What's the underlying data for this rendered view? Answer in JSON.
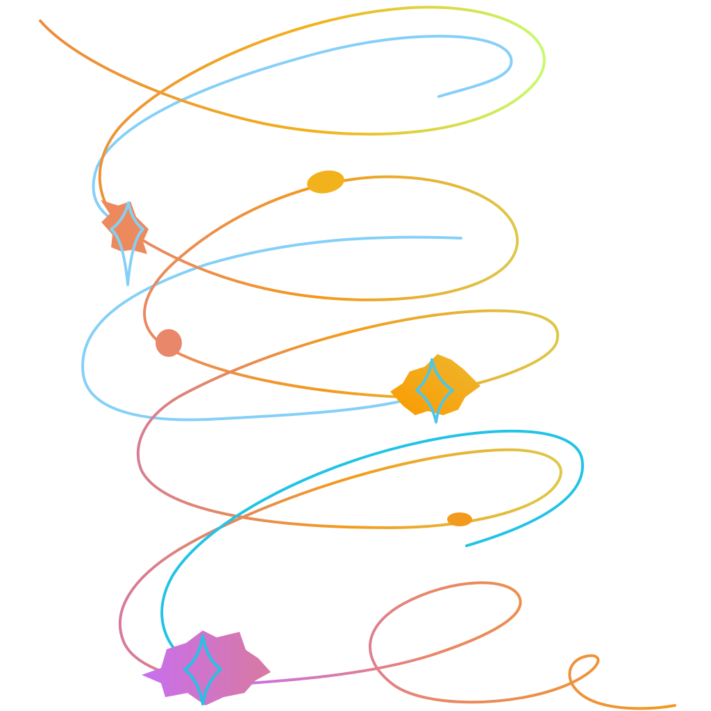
{
  "artwork": {
    "subject": "swirl-ribbons-with-sparkles",
    "colors": {
      "background": "#ffffff",
      "sky_blue": "#85d0f8",
      "orange": "#f39a1c",
      "coral": "#e8876a",
      "lime": "#c8fa6e",
      "gold": "#f2b21c",
      "cyan": "#22c3e6",
      "pink": "#d57a9e",
      "violet": "#c86ef0",
      "mustard": "#ddc84a"
    }
  }
}
